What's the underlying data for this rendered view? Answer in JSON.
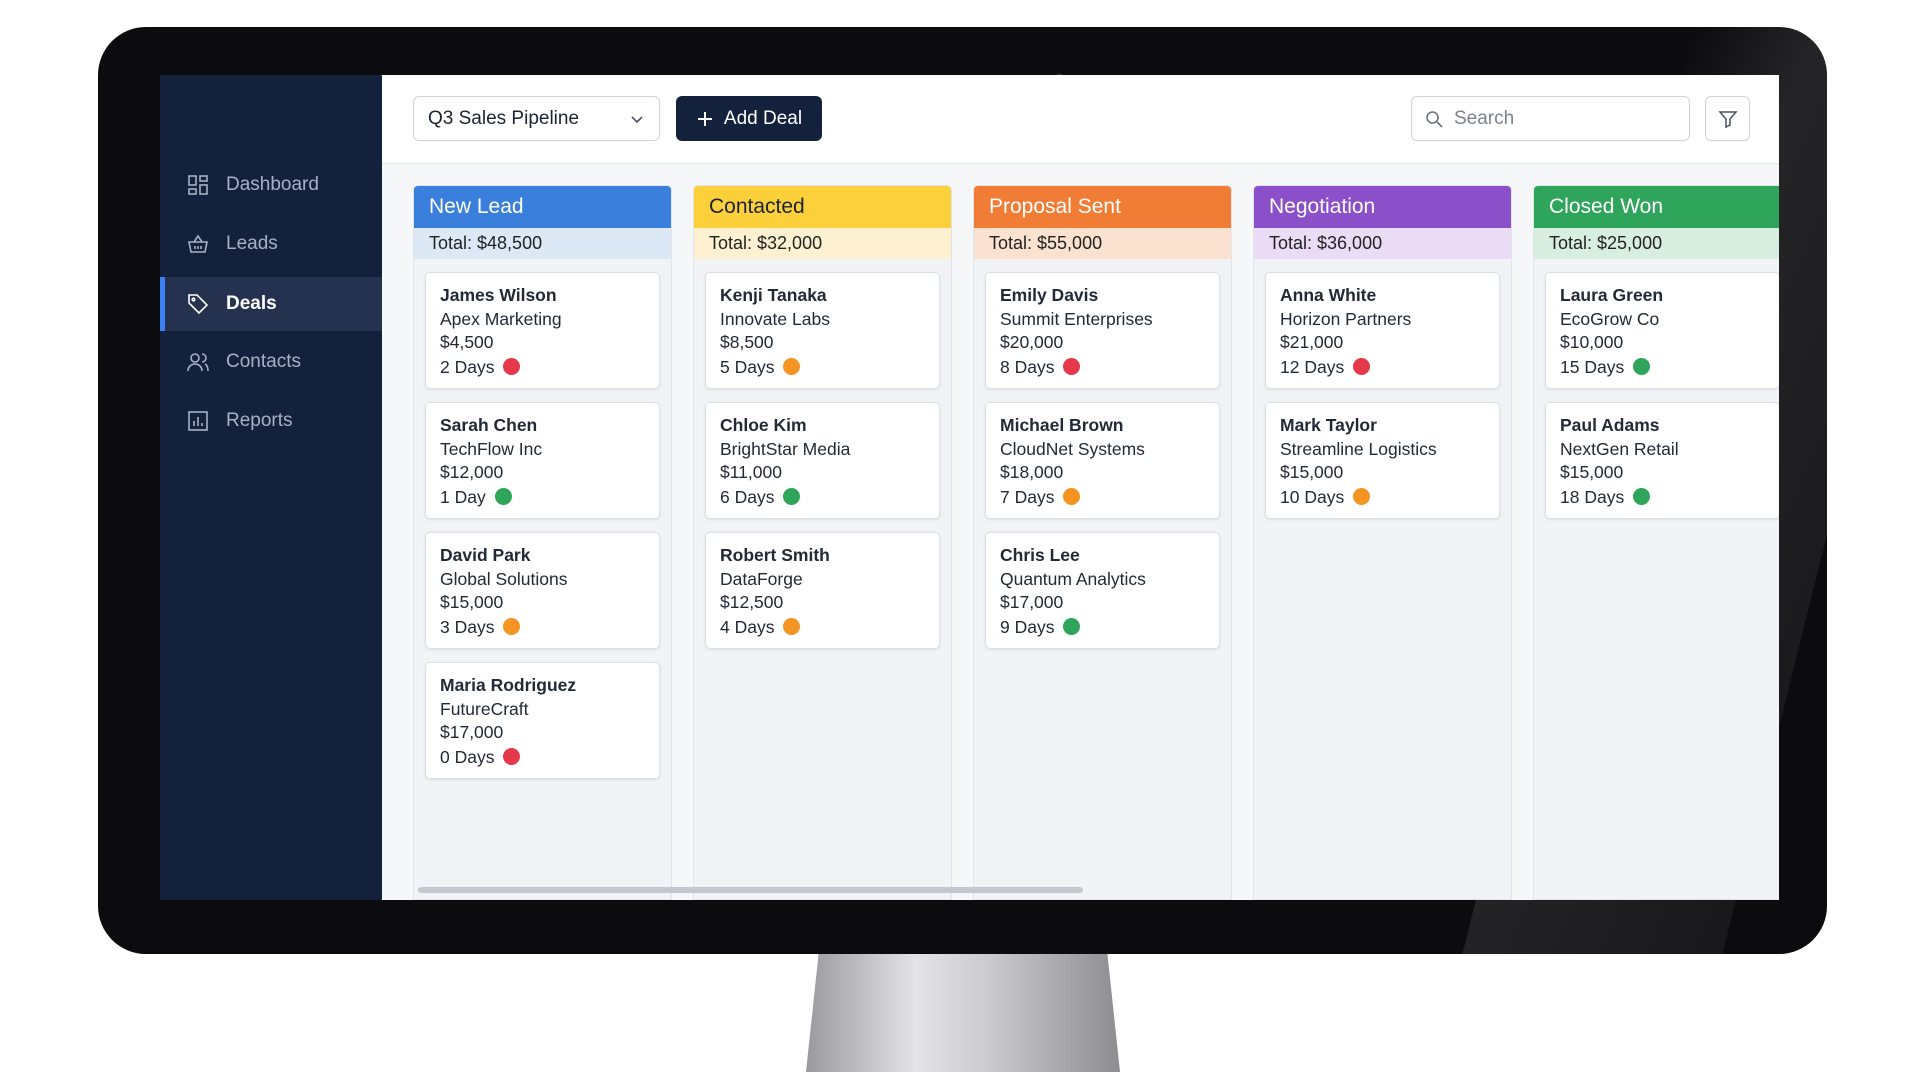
{
  "sidebar": {
    "nav": [
      {
        "label": "Dashboard",
        "active": false
      },
      {
        "label": "Leads",
        "active": false
      },
      {
        "label": "Deals",
        "active": true
      },
      {
        "label": "Contacts",
        "active": false
      },
      {
        "label": "Reports",
        "active": false
      }
    ]
  },
  "toolbar": {
    "pipeline": "Q3 Sales Pipeline",
    "add_button": "Add Deal",
    "search_placeholder": "Search"
  },
  "columns": [
    {
      "title": "New Lead",
      "color": "#3a7fdc",
      "tint": "#dce8f6",
      "text_color": "#ffffff",
      "total": "Total: $48,500",
      "cards": [
        {
          "name": "James Wilson",
          "company": "Apex Marketing",
          "amount": "$4,500",
          "age": "2 Days",
          "status_color": "#e5394b"
        },
        {
          "name": "Sarah Chen",
          "company": "TechFlow Inc",
          "amount": "$12,000",
          "age": "1 Day",
          "status_color": "#2ea55a"
        },
        {
          "name": "David Park",
          "company": "Global Solutions",
          "amount": "$15,000",
          "age": "3 Days",
          "status_color": "#f39423"
        },
        {
          "name": "Maria Rodriguez",
          "company": "FutureCraft",
          "amount": "$17,000",
          "age": "0 Days",
          "status_color": "#e5394b"
        }
      ]
    },
    {
      "title": "Contacted",
      "color": "#fcd03a",
      "tint": "#fdf1d2",
      "text_color": "#1c2333",
      "total": "Total: $32,000",
      "cards": [
        {
          "name": "Kenji Tanaka",
          "company": "Innovate Labs",
          "amount": "$8,500",
          "age": "5 Days",
          "status_color": "#f39423"
        },
        {
          "name": "Chloe Kim",
          "company": "BrightStar Media",
          "amount": "$11,000",
          "age": "6 Days",
          "status_color": "#2ea55a"
        },
        {
          "name": "Robert Smith",
          "company": "DataForge",
          "amount": "$12,500",
          "age": "4 Days",
          "status_color": "#f39423"
        }
      ]
    },
    {
      "title": "Proposal Sent",
      "color": "#f07c36",
      "tint": "#fbe1d0",
      "text_color": "#ffffff",
      "total": "Total: $55,000",
      "cards": [
        {
          "name": "Emily Davis",
          "company": "Summit Enterprises",
          "amount": "$20,000",
          "age": "8 Days",
          "status_color": "#e5394b"
        },
        {
          "name": "Michael Brown",
          "company": "CloudNet Systems",
          "amount": "$18,000",
          "age": "7 Days",
          "status_color": "#f39423"
        },
        {
          "name": "Chris Lee",
          "company": "Quantum Analytics",
          "amount": "$17,000",
          "age": "9 Days",
          "status_color": "#2ea55a"
        }
      ]
    },
    {
      "title": "Negotiation",
      "color": "#8b4fca",
      "tint": "#e9dcf4",
      "text_color": "#ffffff",
      "total": "Total: $36,000",
      "cards": [
        {
          "name": "Anna White",
          "company": "Horizon Partners",
          "amount": "$21,000",
          "age": "12 Days",
          "status_color": "#e5394b"
        },
        {
          "name": "Mark Taylor",
          "company": "Streamline Logistics",
          "amount": "$15,000",
          "age": "10 Days",
          "status_color": "#f39423"
        }
      ]
    },
    {
      "title": "Closed Won",
      "color": "#2fa55b",
      "tint": "#d8eee0",
      "text_color": "#ffffff",
      "total": "Total: $25,000",
      "cards": [
        {
          "name": "Laura Green",
          "company": "EcoGrow Co",
          "amount": "$10,000",
          "age": "15 Days",
          "status_color": "#2ea55a"
        },
        {
          "name": "Paul Adams",
          "company": "NextGen Retail",
          "amount": "$15,000",
          "age": "18 Days",
          "status_color": "#2ea55a"
        }
      ]
    }
  ]
}
